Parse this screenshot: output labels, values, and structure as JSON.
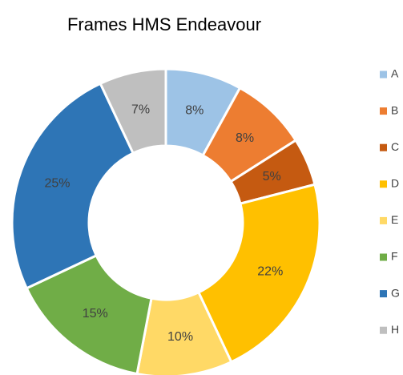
{
  "chart_data": {
    "type": "donut",
    "title": "Frames HMS Endeavour",
    "categories": [
      "A",
      "B",
      "C",
      "D",
      "E",
      "F",
      "G",
      "H"
    ],
    "values": [
      8,
      8,
      5,
      22,
      10,
      15,
      25,
      7
    ],
    "value_labels": [
      "8%",
      "8%",
      "5%",
      "22%",
      "10%",
      "15%",
      "25%",
      "7%"
    ],
    "colors": [
      "#9dc3e6",
      "#ed7d31",
      "#c55a11",
      "#ffc000",
      "#ffd966",
      "#70ad47",
      "#2e75b6",
      "#bfbfbf"
    ],
    "legend": "right"
  }
}
